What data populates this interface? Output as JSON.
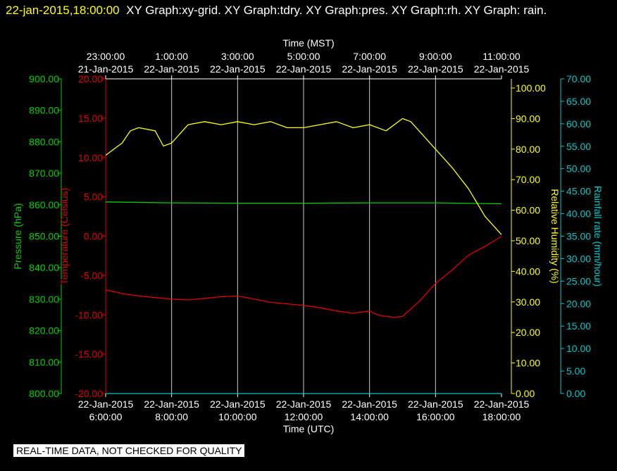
{
  "header": {
    "timestamp": "22-jan-2015,18:00:00",
    "graphs": "XY Graph:xy-grid.  XY Graph:tdry.  XY Graph:pres.  XY Graph:rh.  XY Graph: rain."
  },
  "footer": {
    "note": "REAL-TIME DATA, NOT CHECKED FOR QUALITY"
  },
  "colors": {
    "pressure": "#00d000",
    "temperature": "#e00000",
    "humidity": "#ffff00",
    "rain": "#00c8c8",
    "grid": "#ffffff",
    "text": "#ffffff"
  },
  "chart_data": {
    "type": "line",
    "x_unit_hours_start": "22-Jan-2015 6:00:00 UTC",
    "xlim_hours": [
      0,
      12
    ],
    "bottom_axis": {
      "label": "Time (UTC)",
      "ticks": [
        {
          "h": 0,
          "line1": "22-Jan-2015",
          "line2": "6:00:00"
        },
        {
          "h": 2,
          "line1": "22-Jan-2015",
          "line2": "8:00:00"
        },
        {
          "h": 4,
          "line1": "22-Jan-2015",
          "line2": "10:00:00"
        },
        {
          "h": 6,
          "line1": "22-Jan-2015",
          "line2": "12:00:00"
        },
        {
          "h": 8,
          "line1": "22-Jan-2015",
          "line2": "14:00:00"
        },
        {
          "h": 10,
          "line1": "22-Jan-2015",
          "line2": "16:00:00"
        },
        {
          "h": 12,
          "line1": "22-Jan-2015",
          "line2": "18:00:00"
        }
      ]
    },
    "top_axis": {
      "label": "Time (MST)",
      "ticks": [
        {
          "h": 0,
          "line1": "23:00:00",
          "line2": "21-Jan-2015"
        },
        {
          "h": 2,
          "line1": "1:00:00",
          "line2": "22-Jan-2015"
        },
        {
          "h": 4,
          "line1": "3:00:00",
          "line2": "22-Jan-2015"
        },
        {
          "h": 6,
          "line1": "5:00:00",
          "line2": "22-Jan-2015"
        },
        {
          "h": 8,
          "line1": "7:00:00",
          "line2": "22-Jan-2015"
        },
        {
          "h": 10,
          "line1": "9:00:00",
          "line2": "22-Jan-2015"
        },
        {
          "h": 12,
          "line1": "11:00:00",
          "line2": "22-Jan-2015"
        }
      ]
    },
    "axes": {
      "pressure": {
        "label": "Pressure (hPa)",
        "ylim": [
          800,
          900
        ],
        "ticks": [
          "800.00",
          "810.00",
          "820.00",
          "830.00",
          "840.00",
          "850.00",
          "860.00",
          "870.00",
          "880.00",
          "890.00",
          "900.00"
        ]
      },
      "temperature": {
        "label": "Temperature (Celsius)",
        "ylim": [
          -20,
          20
        ],
        "ticks": [
          "-20.00",
          "-15.00",
          "-10.00",
          "-5.00",
          "0.00",
          "5.00",
          "10.00",
          "15.00",
          "20.00"
        ]
      },
      "humidity": {
        "label": "Relative Humidity (%)",
        "ylim": [
          0,
          103
        ],
        "ticks": [
          "0.00",
          "10.00",
          "20.00",
          "30.00",
          "40.00",
          "50.00",
          "60.00",
          "70.00",
          "80.00",
          "90.00",
          "100.00"
        ]
      },
      "rain": {
        "label": "Rainfall rate (mm/hour)",
        "ylim": [
          0,
          70
        ],
        "ticks": [
          "0.00",
          "5.00",
          "10.00",
          "15.00",
          "20.00",
          "25.00",
          "30.00",
          "35.00",
          "40.00",
          "45.00",
          "50.00",
          "55.00",
          "60.00",
          "65.00",
          "70.00"
        ]
      }
    },
    "series": [
      {
        "name": "pres",
        "axis": "pressure",
        "x": [
          0,
          2,
          4,
          6,
          8,
          10,
          12
        ],
        "values": [
          860.9,
          860.6,
          860.5,
          860.5,
          860.6,
          860.6,
          860.3
        ]
      },
      {
        "name": "tdry",
        "axis": "temperature",
        "x": [
          0,
          0.5,
          1,
          1.5,
          2,
          2.5,
          3,
          3.5,
          4,
          4.5,
          5,
          5.5,
          6,
          6.5,
          7,
          7.5,
          8,
          8.25,
          8.5,
          8.75,
          9,
          9.5,
          10,
          10.5,
          11,
          11.5,
          12
        ],
        "values": [
          -6.8,
          -7.3,
          -7.6,
          -7.8,
          -8.0,
          -8.1,
          -7.9,
          -7.7,
          -7.6,
          -8.0,
          -8.4,
          -8.6,
          -8.8,
          -9.1,
          -9.5,
          -9.8,
          -9.5,
          -10.0,
          -10.2,
          -10.3,
          -10.2,
          -8.3,
          -6.0,
          -4.3,
          -2.4,
          -1.3,
          0.0
        ]
      },
      {
        "name": "rh",
        "axis": "humidity",
        "x": [
          0,
          0.5,
          0.75,
          1,
          1.5,
          1.75,
          2,
          2.5,
          3,
          3.5,
          4,
          4.5,
          5,
          5.5,
          6,
          6.5,
          7,
          7.5,
          8,
          8.5,
          9,
          9.25,
          9.5,
          10,
          10.5,
          11,
          11.5,
          12
        ],
        "values": [
          78,
          82,
          86,
          87,
          86,
          81,
          82,
          88,
          89,
          88,
          89,
          88,
          89,
          87,
          87,
          88,
          89,
          87,
          88,
          86,
          90,
          89,
          86,
          80,
          74,
          67,
          58,
          52
        ]
      },
      {
        "name": "rain",
        "axis": "rain",
        "x": [
          0,
          12
        ],
        "values": [
          0,
          0
        ]
      }
    ]
  }
}
